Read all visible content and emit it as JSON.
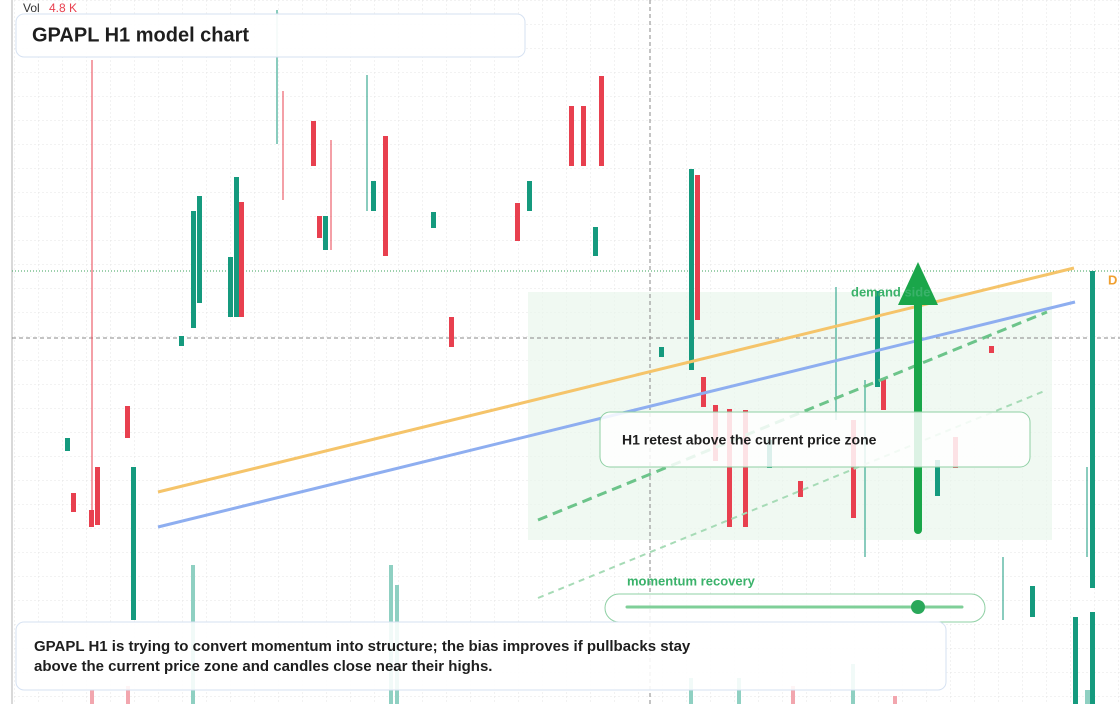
{
  "header": {
    "vol_label": "Vol",
    "vol_value": "4.8 K",
    "title": "GPAPL H1 model chart"
  },
  "annotations": {
    "zone_label": "demand side",
    "edge_label": "D",
    "callout": "H1 retest above the current price zone",
    "momentum_label": "momentum recovery"
  },
  "note": {
    "lines": [
      "GPAPL H1 is trying to convert momentum into structure; the bias improves if pullbacks stay",
      "above the current price zone and candles close near their highs."
    ]
  }
}
